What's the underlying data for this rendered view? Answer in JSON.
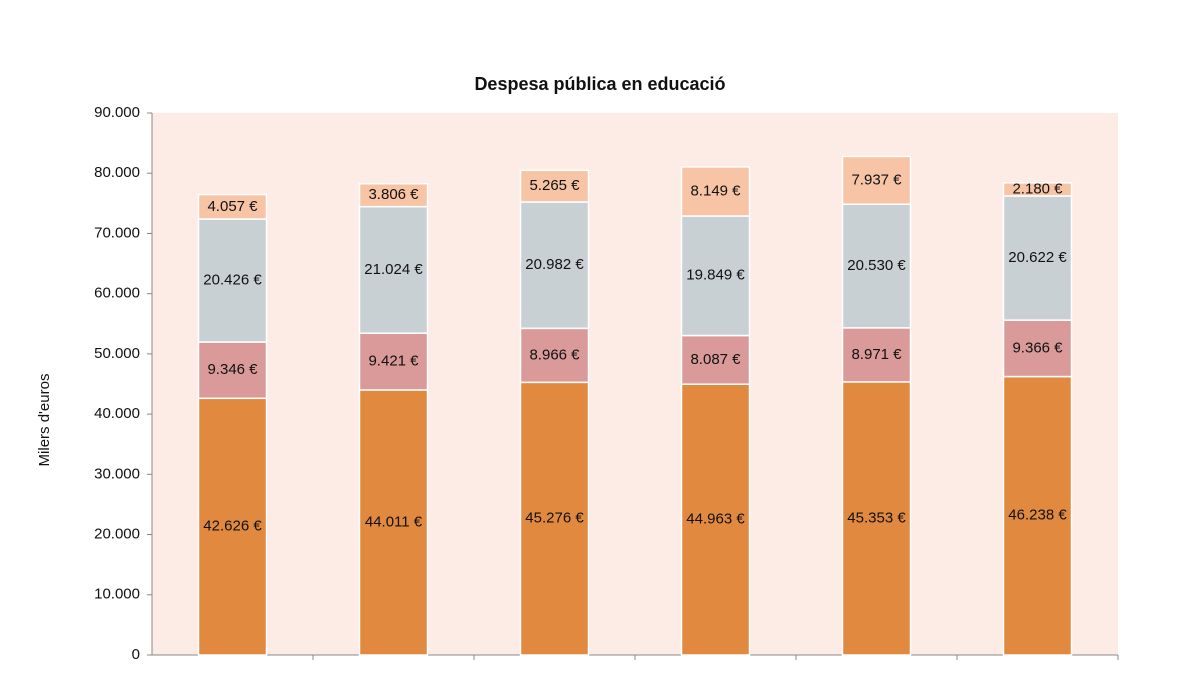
{
  "chart_data": {
    "type": "stacked_bar",
    "title": "Despesa pública en educació",
    "y_label": "Milers d'euros",
    "categories": [
      null,
      null,
      null,
      null,
      null,
      null
    ],
    "series": [
      {
        "color": "#e0893f",
        "values": [
          42626,
          44011,
          45276,
          44963,
          45353,
          46238
        ],
        "value_labels": [
          "42.626 €",
          "44.011 €",
          "45.276 €",
          "44.963 €",
          "45.353 €",
          "46.238 €"
        ]
      },
      {
        "color": "#d99a99",
        "values": [
          9346,
          9421,
          8966,
          8087,
          8971,
          9366
        ],
        "value_labels": [
          "9.346 €",
          "9.421 €",
          "8.966 €",
          "8.087 €",
          "8.971 €",
          "9.366 €"
        ]
      },
      {
        "color": "#c9d0d3",
        "values": [
          20426,
          21024,
          20982,
          19849,
          20530,
          20622
        ],
        "value_labels": [
          "20.426 €",
          "21.024 €",
          "20.982 €",
          "19.849 €",
          "20.530 €",
          "20.622 €"
        ]
      },
      {
        "color": "#f8c4a6",
        "values": [
          4057,
          3806,
          5265,
          8149,
          7937,
          2180
        ],
        "value_labels": [
          "4.057 €",
          "3.806 €",
          "5.265 €",
          "8.149 €",
          "7.937 €",
          "2.180 €"
        ]
      }
    ],
    "ylim": [
      0,
      90000
    ],
    "yticks": [
      0,
      {
        "value": 10000,
        "label": "10.000"
      },
      {
        "value": 20000,
        "label": "20.000"
      },
      {
        "value": 30000,
        "label": "30.000"
      },
      {
        "value": 40000,
        "label": "40.000"
      },
      {
        "value": 50000,
        "label": "50.000"
      },
      {
        "value": 60000,
        "label": "60.000"
      },
      {
        "value": 70000,
        "label": "70.000"
      },
      {
        "value": 80000,
        "label": "80.000"
      },
      {
        "value": 90000,
        "label": "90.000"
      }
    ],
    "plot_background": "#fdebe5"
  }
}
